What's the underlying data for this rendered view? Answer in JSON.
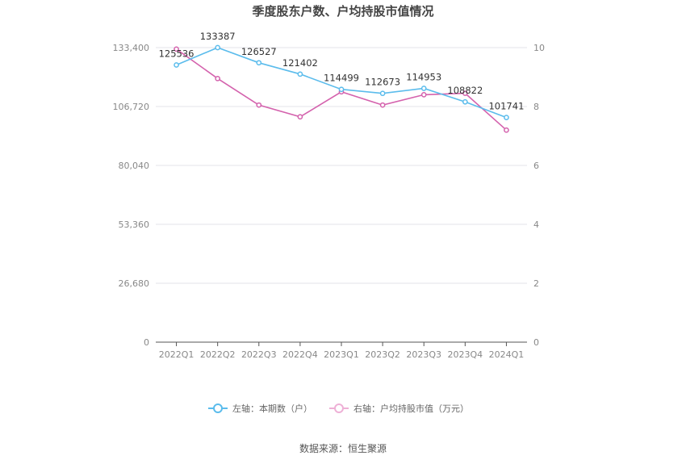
{
  "chart_data": {
    "type": "line",
    "title": "季度股东户数、户均持股市值情况",
    "categories": [
      "2022Q1",
      "2022Q2",
      "2022Q3",
      "2022Q4",
      "2023Q1",
      "2023Q2",
      "2023Q3",
      "2023Q4",
      "2024Q1"
    ],
    "left_axis": {
      "ticks": [
        "0",
        "26,680",
        "53,360",
        "80,040",
        "106,720",
        "133,400"
      ],
      "min": 0,
      "max": 133400
    },
    "right_axis": {
      "ticks": [
        "0",
        "2",
        "4",
        "6",
        "8",
        "10"
      ],
      "min": 0,
      "max": 10
    },
    "grid": true,
    "legend_position": "bottom",
    "series": [
      {
        "name": "左轴：本期数（户）",
        "axis": "left",
        "color": "#5bbcec",
        "values": [
          125536,
          133387,
          126527,
          121402,
          114499,
          112673,
          114953,
          108822,
          101741
        ],
        "labels": [
          "125536",
          "133387",
          "126527",
          "121402",
          "114499",
          "112673",
          "114953",
          "108822",
          "101741"
        ]
      },
      {
        "name": "右轴：户均持股市值（万元）",
        "axis": "right",
        "color": "#d462ad",
        "values": [
          9.95,
          8.95,
          8.05,
          7.65,
          8.5,
          8.05,
          8.4,
          8.45,
          7.2
        ]
      }
    ]
  },
  "source": "数据来源：恒生聚源"
}
